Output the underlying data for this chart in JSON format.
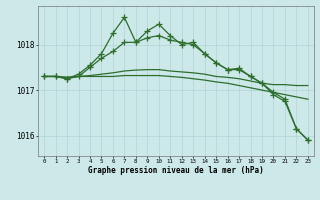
{
  "x": [
    0,
    1,
    2,
    3,
    4,
    5,
    6,
    7,
    8,
    9,
    10,
    11,
    12,
    13,
    14,
    15,
    16,
    17,
    18,
    19,
    20,
    21,
    22,
    23
  ],
  "line1": [
    1017.3,
    1017.3,
    1017.25,
    1017.3,
    1017.5,
    1017.7,
    1017.85,
    1018.05,
    1018.05,
    1018.15,
    1018.2,
    1018.1,
    1018.05,
    1018.0,
    1017.8,
    1017.6,
    1017.45,
    1017.45,
    1017.3,
    1017.15,
    1016.95,
    1016.8,
    1016.15,
    1015.9
  ],
  "line2": [
    1017.3,
    1017.3,
    1017.25,
    1017.35,
    1017.55,
    1017.8,
    1018.25,
    1018.6,
    1018.05,
    1018.3,
    1018.45,
    1018.2,
    1018.0,
    1018.05,
    1017.8,
    1017.6,
    1017.45,
    1017.48,
    1017.3,
    1017.15,
    1016.9,
    1016.75,
    1016.15,
    1015.9
  ],
  "line3": [
    1017.3,
    1017.3,
    1017.28,
    1017.3,
    1017.32,
    1017.35,
    1017.38,
    1017.42,
    1017.44,
    1017.45,
    1017.45,
    1017.42,
    1017.4,
    1017.38,
    1017.35,
    1017.3,
    1017.28,
    1017.25,
    1017.2,
    1017.15,
    1017.12,
    1017.12,
    1017.1,
    1017.1
  ],
  "line4": [
    1017.3,
    1017.3,
    1017.28,
    1017.3,
    1017.3,
    1017.3,
    1017.3,
    1017.32,
    1017.32,
    1017.32,
    1017.32,
    1017.3,
    1017.28,
    1017.25,
    1017.22,
    1017.18,
    1017.15,
    1017.1,
    1017.05,
    1017.0,
    1016.95,
    1016.9,
    1016.85,
    1016.8
  ],
  "bg_color": "#cce8e8",
  "grid_color_major": "#b0d4d4",
  "grid_color_minor": "#b0d4d4",
  "line_color": "#2d6e2d",
  "title": "Graphe pression niveau de la mer (hPa)",
  "ylim_min": 1015.55,
  "ylim_max": 1018.85,
  "yticks": [
    1016,
    1017,
    1018
  ],
  "marker": "+",
  "markersize": 4,
  "linewidth": 0.9
}
